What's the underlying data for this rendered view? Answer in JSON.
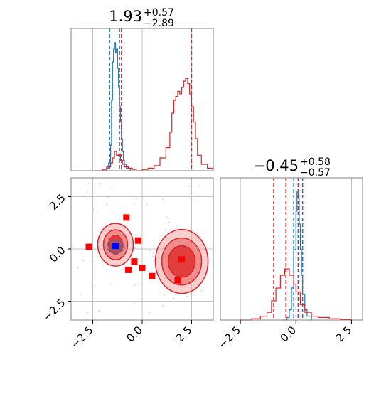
{
  "chart_data": [
    {
      "type": "histogram",
      "panel": "marginal-x",
      "title": {
        "value": "1.93",
        "upper": "+0.57",
        "lower": "−2.89"
      },
      "xlim": [
        -3.6,
        3.6
      ],
      "grid": true,
      "series": [
        {
          "color": "#1f77b4",
          "x": [
            -2.0,
            -1.8,
            -1.7,
            -1.6,
            -1.55,
            -1.5,
            -1.45,
            -1.4,
            -1.35,
            -1.3,
            -1.25,
            -1.2,
            -1.15,
            -1.1,
            -1.05,
            -1.0,
            -0.95,
            -0.9,
            -0.8,
            -0.6
          ],
          "y": [
            0.0,
            0.02,
            0.06,
            0.2,
            0.55,
            0.85,
            0.95,
            1.0,
            0.92,
            0.95,
            0.8,
            0.65,
            0.5,
            0.38,
            0.25,
            0.15,
            0.08,
            0.05,
            0.02,
            0.0
          ],
          "quantiles": [
            -1.65,
            -1.15
          ]
        },
        {
          "color": "#d62728",
          "x": [
            -2.4,
            -2.0,
            -1.8,
            -1.6,
            -1.5,
            -1.4,
            -1.3,
            -1.2,
            -1.1,
            -1.0,
            -0.9,
            -0.7,
            -0.5,
            -0.3,
            0.0,
            0.3,
            0.6,
            0.9,
            1.2,
            1.4,
            1.5,
            1.6,
            1.7,
            1.8,
            1.9,
            2.0,
            2.1,
            2.2,
            2.3,
            2.4,
            2.5,
            2.6,
            2.7,
            2.8,
            3.0,
            3.3,
            3.6
          ],
          "y": [
            0.0,
            0.01,
            0.03,
            0.06,
            0.1,
            0.15,
            0.12,
            0.13,
            0.08,
            0.05,
            0.03,
            0.02,
            0.01,
            0.0,
            0.01,
            0.02,
            0.04,
            0.1,
            0.18,
            0.3,
            0.45,
            0.55,
            0.58,
            0.62,
            0.6,
            0.65,
            0.7,
            0.72,
            0.68,
            0.6,
            0.5,
            0.38,
            0.25,
            0.12,
            0.05,
            0.02,
            0.0
          ],
          "quantiles": [
            -1.05,
            2.5
          ]
        }
      ]
    },
    {
      "type": "scatter",
      "panel": "joint",
      "xlim": [
        -3.6,
        3.6
      ],
      "ylim": [
        -3.4,
        3.4
      ],
      "xticks": [
        "−2.5",
        "0.0",
        "2.5"
      ],
      "yticks": [
        "2.5",
        "0.0",
        "−2.5"
      ],
      "xtick_values": [
        -2.5,
        0.0,
        2.5
      ],
      "ytick_values": [
        2.5,
        0.0,
        -2.5
      ],
      "grid": true,
      "red_contour_center_left": [
        -1.35,
        0.2
      ],
      "red_contour_center_right": [
        2.0,
        -0.6
      ],
      "blue_contour_center": [
        -1.35,
        0.1
      ],
      "points": {
        "color": "#ff0000",
        "marker": "square",
        "x": [
          -2.7,
          -0.8,
          -0.2,
          -0.4,
          -0.7,
          0.0,
          0.5,
          1.8,
          2.0
        ],
        "y": [
          0.1,
          1.5,
          0.4,
          -0.6,
          -1.0,
          -0.9,
          -1.3,
          -1.5,
          -0.5
        ]
      },
      "truth": {
        "color": "#0000ff",
        "marker": "square",
        "x": -1.35,
        "y": 0.15
      }
    },
    {
      "type": "histogram",
      "panel": "marginal-y",
      "title": {
        "value": "−0.45",
        "upper": "+0.58",
        "lower": "−0.57"
      },
      "xlim": [
        -3.4,
        3.0
      ],
      "xticks": [
        "−2.5",
        "0.0",
        "2.5"
      ],
      "xtick_values": [
        -2.5,
        0.0,
        2.5
      ],
      "grid": true,
      "series": [
        {
          "color": "#1f77b4",
          "x": [
            -0.6,
            -0.4,
            -0.3,
            -0.2,
            -0.1,
            0.0,
            0.05,
            0.1,
            0.15,
            0.2,
            0.25,
            0.3,
            0.4,
            0.5,
            0.7
          ],
          "y": [
            0.0,
            0.02,
            0.08,
            0.25,
            0.55,
            0.85,
            1.0,
            0.95,
            0.75,
            0.55,
            0.35,
            0.2,
            0.08,
            0.03,
            0.0
          ],
          "quantiles": [
            -0.1,
            0.1,
            0.3
          ]
        },
        {
          "color": "#d62728",
          "x": [
            -2.5,
            -2.0,
            -1.6,
            -1.3,
            -1.1,
            -0.9,
            -0.7,
            -0.5,
            -0.3,
            -0.1,
            0.0,
            0.2,
            0.4,
            0.7,
            1.0,
            1.5,
            2.0,
            2.5
          ],
          "y": [
            0.0,
            0.01,
            0.03,
            0.06,
            0.15,
            0.25,
            0.35,
            0.4,
            0.35,
            0.28,
            0.22,
            0.12,
            0.06,
            0.03,
            0.02,
            0.01,
            0.005,
            0.0
          ],
          "quantiles": [
            -1.0,
            -0.45,
            0.12
          ]
        }
      ]
    }
  ]
}
